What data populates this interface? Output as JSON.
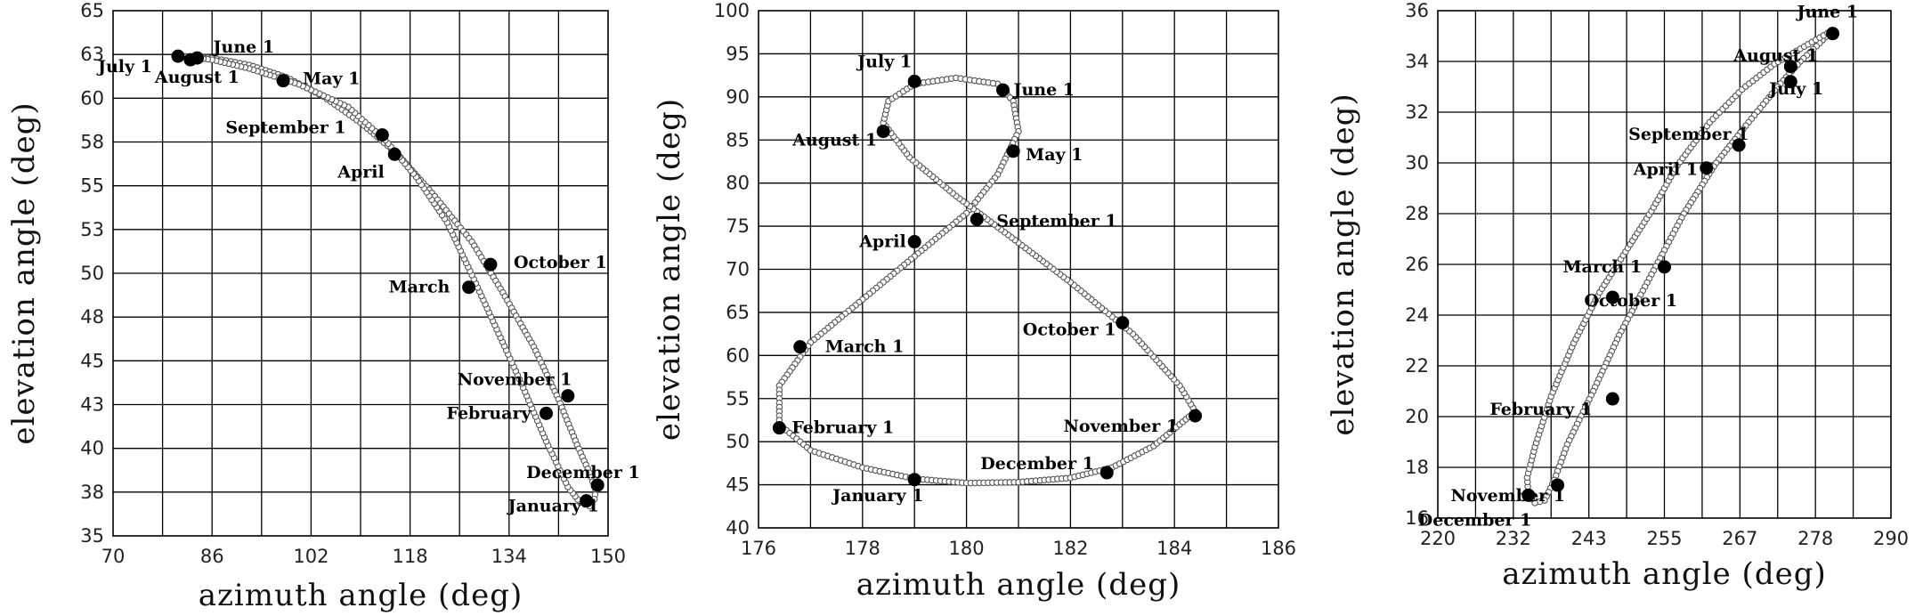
{
  "chart_data": [
    {
      "type": "scatter",
      "xlabel": "azimuth angle  (deg)",
      "ylabel": "elevation angle  (deg)",
      "xlim": [
        70,
        150
      ],
      "ylim": [
        35,
        65
      ],
      "xticks": [
        "70",
        "86",
        "102",
        "118",
        "134",
        "150"
      ],
      "yticks": [
        "35",
        "38",
        "40",
        "43",
        "45",
        "48",
        "50",
        "53",
        "55",
        "58",
        "60",
        "63",
        "65"
      ],
      "grid": true,
      "trace_outer": [
        [
          81,
          62.4
        ],
        [
          86,
          62.3
        ],
        [
          92,
          61.9
        ],
        [
          98,
          61.2
        ],
        [
          104,
          60.1
        ],
        [
          110,
          58.6
        ],
        [
          116,
          56.8
        ],
        [
          122,
          54.4
        ],
        [
          128,
          51.8
        ],
        [
          133,
          48.9
        ],
        [
          138,
          45.8
        ],
        [
          142,
          42.8
        ],
        [
          145,
          40.2
        ],
        [
          147,
          38.6
        ],
        [
          148,
          37.6
        ],
        [
          147.8,
          37.1
        ],
        [
          147,
          36.7
        ]
      ],
      "trace_inner": [
        [
          147,
          36.7
        ],
        [
          145.5,
          36.9
        ],
        [
          143.5,
          37.8
        ],
        [
          140,
          40.4
        ],
        [
          136,
          43.7
        ],
        [
          132,
          46.8
        ],
        [
          128,
          49.9
        ],
        [
          124,
          52.9
        ],
        [
          119,
          55.5
        ],
        [
          114,
          57.6
        ],
        [
          108,
          59.5
        ],
        [
          100,
          60.8
        ],
        [
          92,
          61.7
        ],
        [
          86,
          62.2
        ],
        [
          81,
          62.4
        ]
      ],
      "points": [
        {
          "label": "June 1",
          "x": 83.6,
          "y": 62.3
        },
        {
          "label": "July 1",
          "x": 80.5,
          "y": 62.4
        },
        {
          "label": "August 1",
          "x": 82.5,
          "y": 62.2
        },
        {
          "label": "May 1",
          "x": 97.5,
          "y": 61.0
        },
        {
          "label": "September 1",
          "x": 113.5,
          "y": 57.9
        },
        {
          "label": "April",
          "x": 115.5,
          "y": 56.8
        },
        {
          "label": "October 1",
          "x": 131.0,
          "y": 50.5
        },
        {
          "label": "March",
          "x": 127.5,
          "y": 49.2
        },
        {
          "label": "November 1",
          "x": 143.5,
          "y": 43.0
        },
        {
          "label": "February",
          "x": 140.0,
          "y": 42.0
        },
        {
          "label": "December 1",
          "x": 148.3,
          "y": 37.9
        },
        {
          "label": "January 1",
          "x": 146.5,
          "y": 37.0
        }
      ]
    },
    {
      "type": "scatter",
      "xlabel": "azimuth angle  (deg)",
      "ylabel": "elevation angle  (deg)",
      "xlim": [
        176,
        186
      ],
      "ylim": [
        40,
        100
      ],
      "xticks": [
        "176",
        "178",
        "180",
        "182",
        "184",
        "186"
      ],
      "yticks": [
        "40",
        "45",
        "50",
        "55",
        "60",
        "65",
        "70",
        "75",
        "80",
        "85",
        "90",
        "95",
        "100"
      ],
      "grid": true,
      "trace_outer": [
        [
          180.6,
          91.5
        ],
        [
          180.9,
          89.5
        ],
        [
          181.0,
          86.0
        ],
        [
          180.6,
          81.0
        ],
        [
          180.0,
          76.5
        ],
        [
          179.0,
          71.5
        ],
        [
          178.0,
          66.5
        ],
        [
          177.0,
          61.5
        ],
        [
          176.4,
          56.5
        ],
        [
          176.4,
          52.0
        ],
        [
          177.0,
          49.0
        ],
        [
          178.0,
          47.0
        ],
        [
          179.0,
          45.7
        ],
        [
          180.0,
          45.2
        ],
        [
          181.0,
          45.3
        ],
        [
          182.0,
          45.8
        ],
        [
          182.8,
          47.0
        ],
        [
          183.6,
          49.5
        ],
        [
          184.1,
          52.0
        ],
        [
          184.4,
          53.5
        ],
        [
          184.1,
          56.5
        ],
        [
          183.2,
          62.5
        ],
        [
          182.0,
          68.5
        ],
        [
          180.8,
          74.0
        ],
        [
          179.8,
          78.5
        ],
        [
          178.9,
          83.0
        ],
        [
          178.4,
          87.0
        ],
        [
          178.5,
          89.5
        ],
        [
          179.0,
          91.5
        ],
        [
          179.8,
          92.2
        ],
        [
          180.6,
          91.5
        ]
      ],
      "points": [
        {
          "label": "July 1",
          "x": 179.0,
          "y": 91.8
        },
        {
          "label": "June 1",
          "x": 180.7,
          "y": 90.8
        },
        {
          "label": "August 1",
          "x": 178.4,
          "y": 86.0
        },
        {
          "label": "May 1",
          "x": 180.9,
          "y": 83.7
        },
        {
          "label": "September 1",
          "x": 180.2,
          "y": 75.8
        },
        {
          "label": "April",
          "x": 179.0,
          "y": 73.2
        },
        {
          "label": "October 1",
          "x": 183.0,
          "y": 63.8
        },
        {
          "label": "March 1",
          "x": 176.8,
          "y": 61.0
        },
        {
          "label": "November 1",
          "x": 184.4,
          "y": 53.0
        },
        {
          "label": "February 1",
          "x": 176.4,
          "y": 51.6
        },
        {
          "label": "December 1",
          "x": 182.7,
          "y": 46.4
        },
        {
          "label": "January 1",
          "x": 179.0,
          "y": 45.6
        }
      ]
    },
    {
      "type": "scatter",
      "xlabel": "azimuth angle  (deg)",
      "ylabel": "elevation angle  (deg)",
      "xlim": [
        220,
        290
      ],
      "ylim": [
        16,
        36
      ],
      "xticks": [
        "220",
        "232",
        "243",
        "255",
        "267",
        "278",
        "290"
      ],
      "yticks": [
        "16",
        "18",
        "20",
        "22",
        "24",
        "26",
        "28",
        "30",
        "32",
        "34",
        "36"
      ],
      "grid": true,
      "trace_outer": [
        [
          280.8,
          35.2
        ],
        [
          278.5,
          34.6
        ],
        [
          276,
          34.0
        ],
        [
          272.5,
          33.0
        ],
        [
          268,
          31.6
        ],
        [
          263,
          30.0
        ],
        [
          258,
          28.0
        ],
        [
          253,
          25.6
        ],
        [
          248,
          23.2
        ],
        [
          244,
          21.0
        ],
        [
          240,
          18.9
        ],
        [
          238,
          17.5
        ],
        [
          236.5,
          16.7
        ],
        [
          235,
          16.6
        ],
        [
          234,
          16.9
        ]
      ],
      "trace_inner": [
        [
          234,
          16.9
        ],
        [
          233.8,
          17.6
        ],
        [
          235,
          18.8
        ],
        [
          237.5,
          20.8
        ],
        [
          241,
          22.9
        ],
        [
          245,
          24.9
        ],
        [
          249,
          26.5
        ],
        [
          253,
          28.1
        ],
        [
          257,
          29.9
        ],
        [
          262,
          31.6
        ],
        [
          267,
          32.9
        ],
        [
          272,
          33.9
        ],
        [
          276,
          34.5
        ],
        [
          280.8,
          35.2
        ]
      ],
      "points": [
        {
          "label": "June 1",
          "x": 281.0,
          "y": 35.1
        },
        {
          "label": "August 1",
          "x": 274.5,
          "y": 33.8
        },
        {
          "label": "July 1",
          "x": 274.5,
          "y": 33.2
        },
        {
          "label": "September 1",
          "x": 266.5,
          "y": 30.7
        },
        {
          "label": "April 1",
          "x": 261.5,
          "y": 29.8
        },
        {
          "label": "March 1",
          "x": 255.0,
          "y": 25.9
        },
        {
          "label": "October 1",
          "x": 247.0,
          "y": 24.7
        },
        {
          "label": "February 1",
          "x": 247.0,
          "y": 20.7
        },
        {
          "label": "November 1",
          "x": 238.5,
          "y": 17.3
        },
        {
          "label": "December 1",
          "x": 234.0,
          "y": 16.9
        }
      ]
    }
  ]
}
